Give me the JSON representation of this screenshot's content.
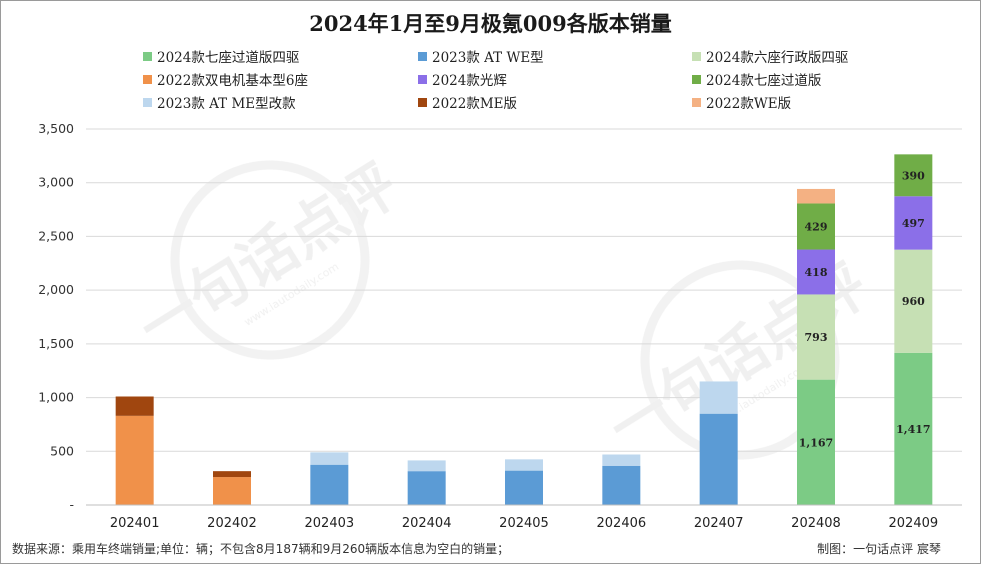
{
  "chart_data": {
    "type": "bar",
    "stacked": true,
    "title": "2024年1月至9月极氪009各版本销量",
    "categories": [
      "202401",
      "202402",
      "202403",
      "202404",
      "202405",
      "202406",
      "202407",
      "202408",
      "202409"
    ],
    "ylim": [
      0,
      3500
    ],
    "yticks": [
      0,
      500,
      1000,
      1500,
      2000,
      2500,
      3000,
      3500
    ],
    "ytick_labels": [
      "-",
      "500",
      "1,000",
      "1,500",
      "2,000",
      "2,500",
      "3,000",
      "3,500"
    ],
    "grid": true,
    "legend_position": "top",
    "series": [
      {
        "name": "2024款七座过道版四驱",
        "color": "#7ccb85",
        "values": [
          0,
          0,
          0,
          0,
          0,
          0,
          0,
          1167,
          1417
        ]
      },
      {
        "name": "2023款 AT WE型",
        "color": "#5b9bd5",
        "values": [
          0,
          0,
          375,
          315,
          320,
          365,
          850,
          0,
          0
        ]
      },
      {
        "name": "2024款六座行政版四驱",
        "color": "#c6e0b4",
        "values": [
          0,
          0,
          0,
          0,
          0,
          0,
          0,
          793,
          960
        ]
      },
      {
        "name": "2022款双电机基本型6座",
        "color": "#f0914a",
        "values": [
          830,
          260,
          0,
          0,
          0,
          0,
          0,
          0,
          0
        ]
      },
      {
        "name": "2024款光辉",
        "color": "#8b6fe8",
        "values": [
          0,
          0,
          0,
          0,
          0,
          0,
          0,
          418,
          497
        ]
      },
      {
        "name": "2024款七座过道版",
        "color": "#70ad47",
        "values": [
          0,
          0,
          0,
          0,
          0,
          0,
          0,
          429,
          390
        ]
      },
      {
        "name": "2023款 AT ME型改款",
        "color": "#bdd7ee",
        "values": [
          0,
          0,
          115,
          100,
          105,
          105,
          300,
          0,
          0
        ]
      },
      {
        "name": "2022款ME版",
        "color": "#a0460f",
        "values": [
          180,
          55,
          0,
          0,
          0,
          0,
          0,
          0,
          0
        ]
      },
      {
        "name": "2022款WE版",
        "color": "#f4b183",
        "values": [
          0,
          0,
          0,
          0,
          0,
          0,
          0,
          135,
          0
        ]
      }
    ],
    "data_labels": [
      {
        "series": 0,
        "category": 7,
        "text": "1,167"
      },
      {
        "series": 0,
        "category": 8,
        "text": "1,417"
      },
      {
        "series": 2,
        "category": 7,
        "text": "793"
      },
      {
        "series": 2,
        "category": 8,
        "text": "960"
      },
      {
        "series": 4,
        "category": 7,
        "text": "418"
      },
      {
        "series": 4,
        "category": 8,
        "text": "497"
      },
      {
        "series": 5,
        "category": 7,
        "text": "429"
      },
      {
        "series": 5,
        "category": 8,
        "text": "390"
      }
    ]
  },
  "footer": {
    "source": "数据来源：乘用车终端销量;单位：辆；不包含8月187辆和9月260辆版本信息为空白的销量；",
    "credit": "制图：一句话点评 宸琴"
  },
  "watermark": {
    "text": "一句话点评",
    "url": "www.iautodaily.com"
  }
}
